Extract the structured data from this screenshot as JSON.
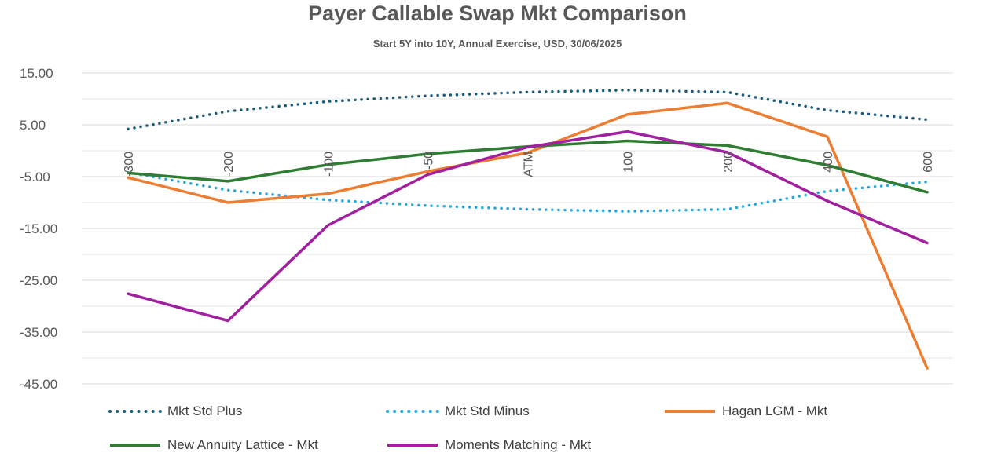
{
  "chart_data": {
    "type": "line",
    "title": "Payer Callable Swap Mkt Comparison",
    "subtitle": "Start 5Y into 10Y, Annual Exercise, USD,  30/06/2025",
    "xlabel": "",
    "ylabel": "",
    "categories": [
      "-300",
      "-200",
      "-100",
      "-50",
      "ATM",
      "100",
      "200",
      "400",
      "600"
    ],
    "ylim": [
      -45,
      15
    ],
    "yticks": [
      "15.00",
      "5.00",
      "-5.00",
      "-15.00",
      "-25.00",
      "-35.00",
      "-45.00"
    ],
    "ytick_values": [
      15,
      5,
      -5,
      -15,
      -25,
      -35,
      -45
    ],
    "grid": true,
    "legend_position": "bottom",
    "series": [
      {
        "name": "Mkt Std Plus",
        "color": "#1F5C7A",
        "style": "dotted",
        "values": [
          4.2,
          7.6,
          9.5,
          10.6,
          11.3,
          11.7,
          11.3,
          7.8,
          6.0
        ]
      },
      {
        "name": "Mkt Std Minus",
        "color": "#2AA8D8",
        "style": "dotted",
        "values": [
          -4.2,
          -7.6,
          -9.5,
          -10.6,
          -11.3,
          -11.7,
          -11.3,
          -7.8,
          -6.0
        ]
      },
      {
        "name": "Hagan LGM - Mkt",
        "color": "#ED7D31",
        "style": "solid",
        "values": [
          -5.2,
          -10.0,
          -8.3,
          -4.0,
          -0.4,
          7.0,
          9.2,
          2.7,
          -42.0
        ]
      },
      {
        "name": "New Annuity Lattice - Mkt",
        "color": "#2E7D32",
        "style": "solid",
        "values": [
          -4.3,
          -5.9,
          -2.7,
          -0.6,
          0.8,
          1.9,
          1.0,
          -2.8,
          -8.0
        ]
      },
      {
        "name": "Moments Matching - Mkt",
        "color": "#A020A0",
        "style": "solid",
        "values": [
          -27.6,
          -32.8,
          -14.4,
          -4.6,
          0.7,
          3.7,
          -0.3,
          -9.7,
          -17.8
        ]
      }
    ]
  }
}
